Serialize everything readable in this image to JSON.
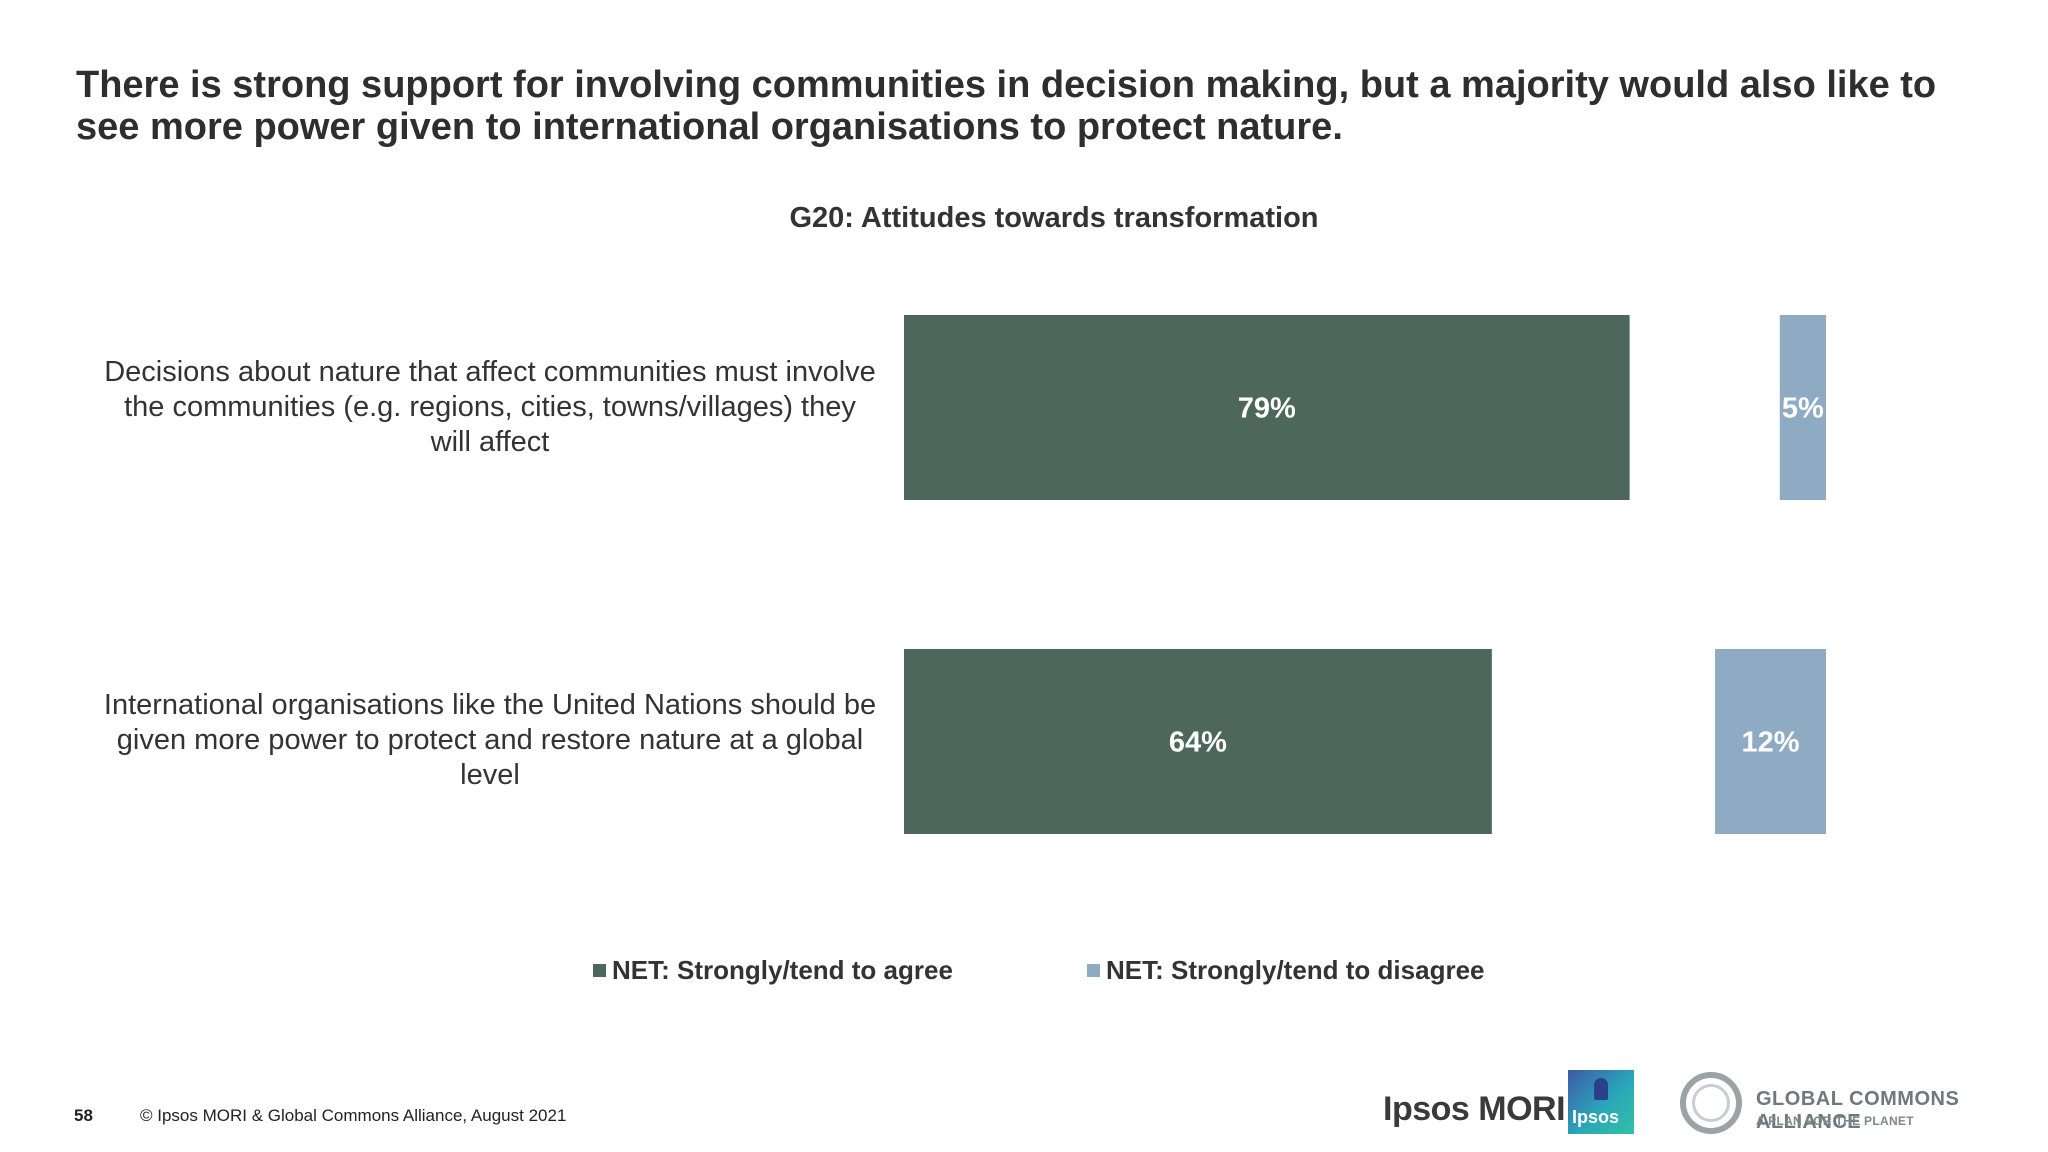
{
  "headline": "There is strong support for involving communities in decision making, but a majority would also like to see more power given to international organisations to protect nature.",
  "chart_data": {
    "type": "bar",
    "orientation": "horizontal",
    "title": "G20: Attitudes towards transformation",
    "categories": [
      "Decisions about nature that affect communities must involve the communities (e.g. regions, cities, towns/villages) they will affect",
      "International organisations like the United Nations should be given more power to protect and restore nature at a global level"
    ],
    "series": [
      {
        "name": "NET: Strongly/tend to agree",
        "values": [
          79,
          64
        ],
        "labels": [
          "79%",
          "64%"
        ],
        "color": "#4d675c"
      },
      {
        "name": "NET: Strongly/tend to disagree",
        "values": [
          5,
          12
        ],
        "labels": [
          "5%",
          "12%"
        ],
        "color": "#8fabc4"
      }
    ],
    "xlim": [
      0,
      100
    ],
    "legend_position": "bottom",
    "grid": false
  },
  "footer": {
    "page_number": "58",
    "copyright": "© Ipsos MORI & Global Commons Alliance, August 2021"
  },
  "logos": {
    "ipsos_mori": "Ipsos MORI",
    "ipsos": "Ipsos",
    "gca_title": "GLOBAL COMMONS ALLIANCE",
    "gca_subtitle": "A PLAN FOR THE PLANET"
  }
}
